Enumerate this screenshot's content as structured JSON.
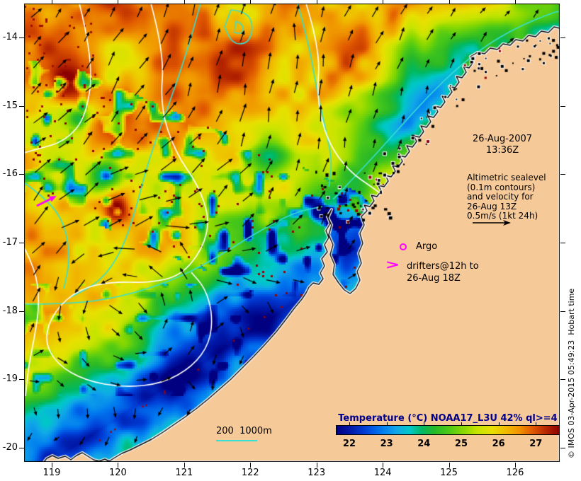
{
  "annotations": {
    "datetime": {
      "date": "26-Aug-2007",
      "time": "13:36Z"
    },
    "altimetric_legend": {
      "lines": [
        "Altimetric sealevel",
        "(0.1m contours)",
        "and velocity for",
        "26-Aug 13Z",
        "0.5m/s (1kt 24h)"
      ]
    },
    "argo": {
      "label": "Argo"
    },
    "drifters": {
      "symbol": ">",
      "line1": "drifters@12h to",
      "line2": "26-Aug 18Z"
    },
    "bathymetry_legend": {
      "label": "200  1000m"
    },
    "copyright": "© IMOS 03-Apr-2015 05:49:23  Hobart time"
  },
  "axes": {
    "x_tick_labels": [
      "119",
      "120",
      "121",
      "122",
      "123",
      "124",
      "125",
      "126"
    ],
    "y_tick_labels": [
      "-14",
      "-15",
      "-16",
      "-17",
      "-18",
      "-19",
      "-20"
    ]
  },
  "colorbar": {
    "title": "Temperature (°C) NOAA17_L3U 42% ql>=4",
    "title_color": "#00008B",
    "tick_labels": [
      "22",
      "23",
      "24",
      "25",
      "26",
      "27"
    ],
    "value_min": 21.64,
    "value_max": 27.64,
    "stops": [
      {
        "p": 0.0,
        "c": "#000080"
      },
      {
        "p": 0.06,
        "c": "#0018A8"
      },
      {
        "p": 0.13,
        "c": "#0040D8"
      },
      {
        "p": 0.2,
        "c": "#0078F0"
      },
      {
        "p": 0.27,
        "c": "#10A8E8"
      },
      {
        "p": 0.33,
        "c": "#00C8C8"
      },
      {
        "p": 0.385,
        "c": "#00B860"
      },
      {
        "p": 0.44,
        "c": "#28B828"
      },
      {
        "p": 0.5,
        "c": "#48C818"
      },
      {
        "p": 0.57,
        "c": "#88D800"
      },
      {
        "p": 0.635,
        "c": "#C8E400"
      },
      {
        "p": 0.7,
        "c": "#E8E000"
      },
      {
        "p": 0.76,
        "c": "#F0BC00"
      },
      {
        "p": 0.82,
        "c": "#F09400"
      },
      {
        "p": 0.88,
        "c": "#E05800"
      },
      {
        "p": 0.94,
        "c": "#B82800"
      },
      {
        "p": 1.0,
        "c": "#8B0000"
      }
    ]
  },
  "map_colors": {
    "land": "#F6C998",
    "coastline": "#000000",
    "coast_fringe": "#FFFFFF",
    "sealevel_contour": "#FFFFFF",
    "bathymetry_contour": "#35E0D0",
    "velocity_vector": "#000000",
    "drifter": "#FF00FF",
    "argo": "#FF00FF"
  }
}
